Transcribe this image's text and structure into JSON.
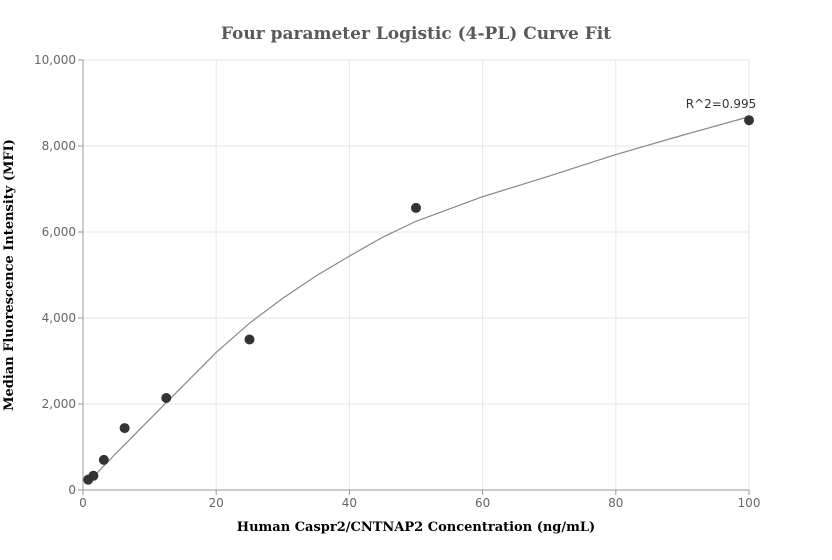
{
  "chart_data": {
    "type": "scatter",
    "title": "Four parameter Logistic (4-PL) Curve Fit",
    "xlabel": "Human Caspr2/CNTNAP2 Concentration (ng/mL)",
    "ylabel": "Median Fluorescence Intensity (MFI)",
    "xlim": [
      0,
      100
    ],
    "ylim": [
      0,
      10000
    ],
    "x_ticks": [
      0,
      20,
      40,
      60,
      80,
      100
    ],
    "y_ticks": [
      0,
      2000,
      4000,
      6000,
      8000,
      10000
    ],
    "x_tick_labels": [
      "0",
      "20",
      "40",
      "60",
      "80",
      "100"
    ],
    "y_tick_labels": [
      "0",
      "2,000",
      "4,000",
      "6,000",
      "8,000",
      "10,000"
    ],
    "grid": true,
    "series": [
      {
        "type": "scatter",
        "color": "#333333",
        "points": [
          {
            "x": 0.78,
            "y": 240
          },
          {
            "x": 1.56,
            "y": 330
          },
          {
            "x": 3.13,
            "y": 700
          },
          {
            "x": 6.25,
            "y": 1440
          },
          {
            "x": 12.5,
            "y": 2140
          },
          {
            "x": 25,
            "y": 3500
          },
          {
            "x": 50,
            "y": 6560
          },
          {
            "x": 100,
            "y": 8600
          }
        ]
      },
      {
        "type": "line",
        "color": "#888888",
        "points": [
          {
            "x": 0.5,
            "y": 160
          },
          {
            "x": 2,
            "y": 380
          },
          {
            "x": 5,
            "y": 860
          },
          {
            "x": 10,
            "y": 1640
          },
          {
            "x": 15,
            "y": 2420
          },
          {
            "x": 20,
            "y": 3200
          },
          {
            "x": 25,
            "y": 3880
          },
          {
            "x": 30,
            "y": 4460
          },
          {
            "x": 35,
            "y": 4980
          },
          {
            "x": 40,
            "y": 5440
          },
          {
            "x": 45,
            "y": 5880
          },
          {
            "x": 50,
            "y": 6250
          },
          {
            "x": 60,
            "y": 6820
          },
          {
            "x": 70,
            "y": 7300
          },
          {
            "x": 80,
            "y": 7800
          },
          {
            "x": 90,
            "y": 8250
          },
          {
            "x": 100,
            "y": 8680
          }
        ]
      }
    ],
    "annotations": [
      {
        "text": "R^2=0.995",
        "x": 100,
        "y": 8600
      }
    ]
  }
}
